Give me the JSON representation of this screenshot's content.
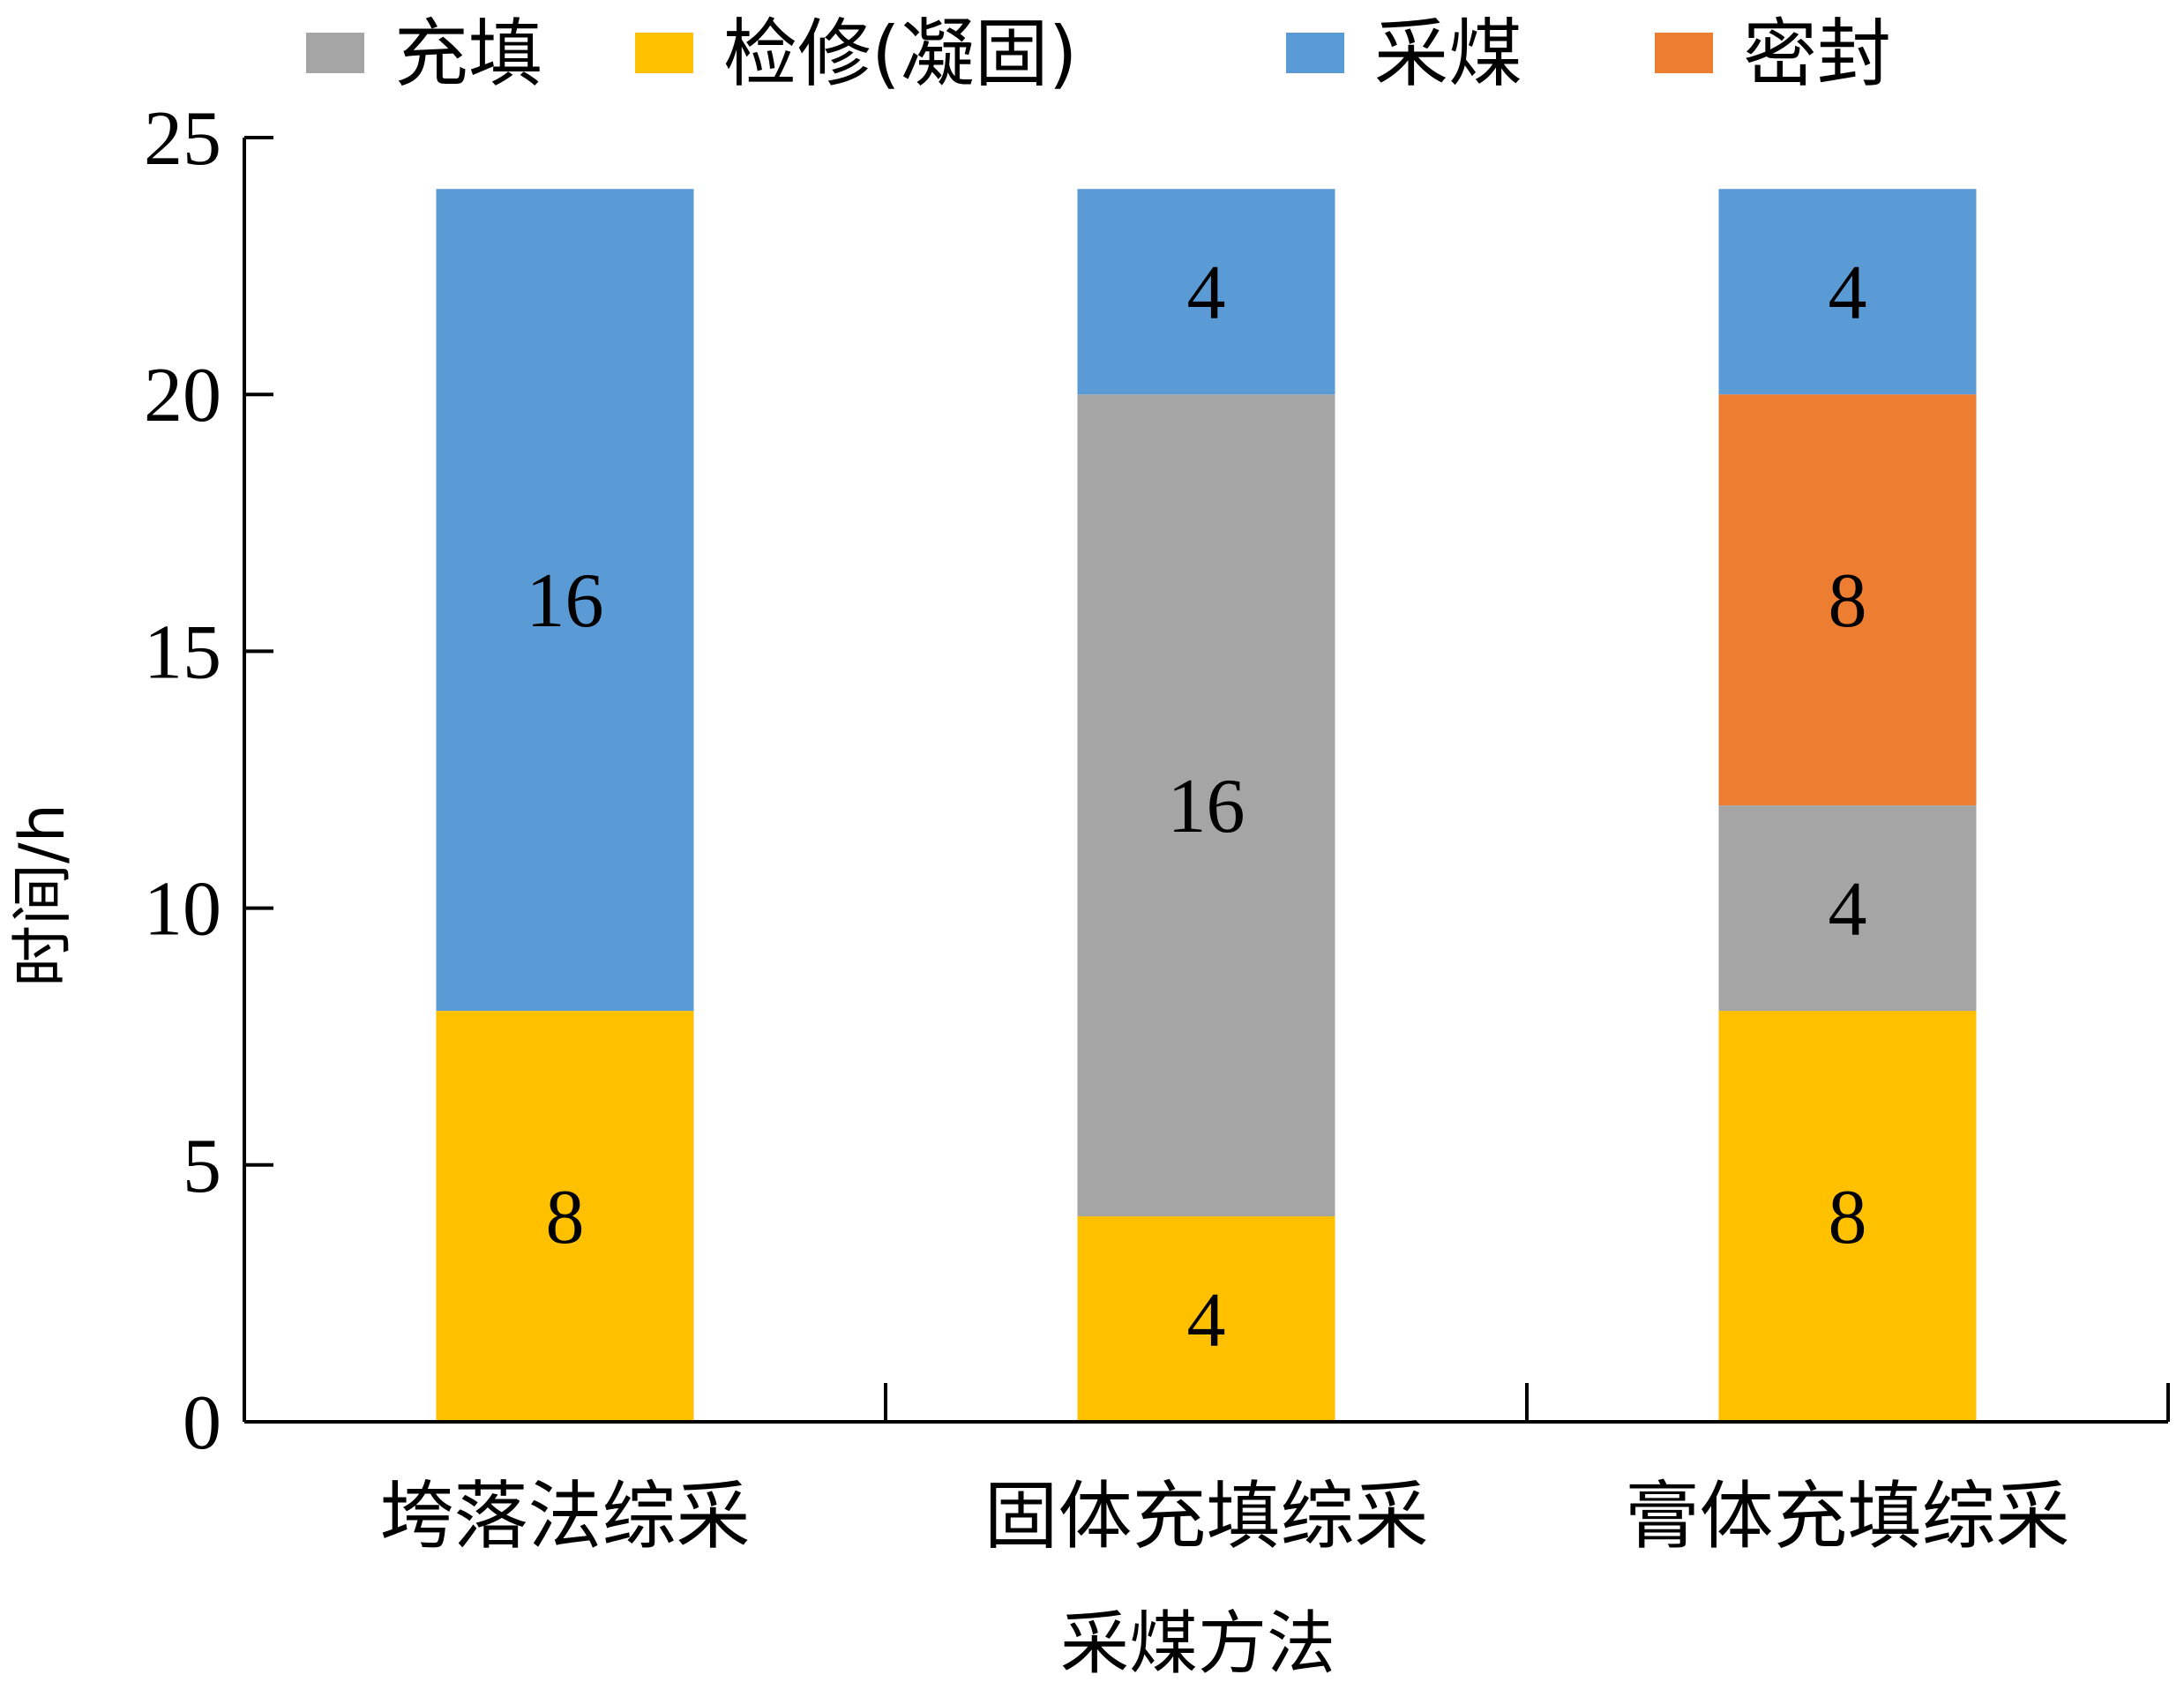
{
  "chart_data": {
    "type": "bar",
    "stacked": true,
    "categories": [
      "垮落法综采",
      "固体充填综采",
      "膏体充填综采"
    ],
    "series": [
      {
        "name": "检修(凝固)",
        "color": "#FFC000",
        "values": [
          8,
          4,
          8
        ]
      },
      {
        "name": "充填",
        "color": "#A5A5A5",
        "values": [
          0,
          16,
          4
        ]
      },
      {
        "name": "密封",
        "color": "#ED7D31",
        "values": [
          0,
          0,
          8
        ]
      },
      {
        "name": "采煤",
        "color": "#5B9BD5",
        "values": [
          16,
          4,
          4
        ]
      }
    ],
    "legend_order": [
      "充填",
      "检修(凝固)",
      "采煤",
      "密封"
    ],
    "xlabel": "采煤方法",
    "ylabel": "时间/h",
    "ylim": [
      0,
      25
    ],
    "yticks": [
      0,
      5,
      10,
      15,
      20,
      25
    ],
    "grid": false,
    "legend_position": "top",
    "data_labels": true
  }
}
